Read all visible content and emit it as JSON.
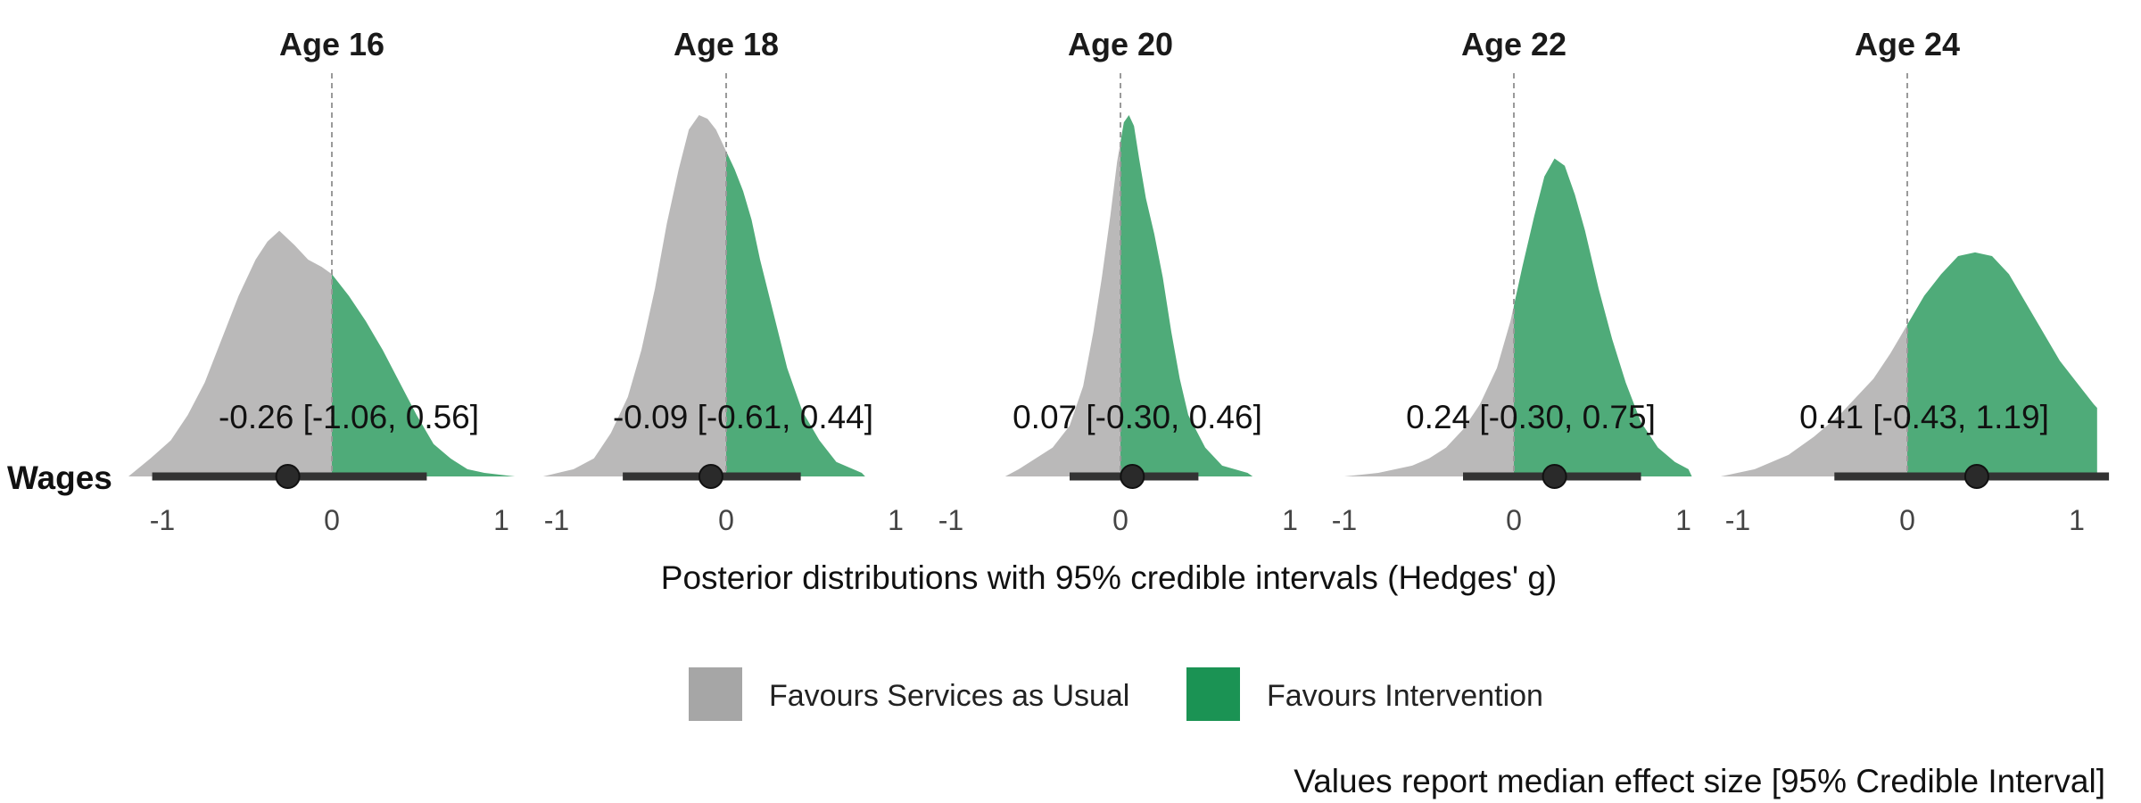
{
  "chart_data": {
    "type": "density",
    "row_label": "Wages",
    "xlabel": "Posterior distributions with 95% credible intervals (Hedges' g)",
    "xlim": [
      -1,
      1
    ],
    "xticks": [
      "-1",
      "0",
      "1"
    ],
    "reference_line": 0,
    "panels": [
      {
        "title": "Age 16",
        "median": -0.26,
        "ci": [
          -1.06,
          0.56
        ],
        "label": "-0.26 [-1.06, 0.56]",
        "density_x": [
          -1.2,
          -1.07,
          -0.95,
          -0.85,
          -0.75,
          -0.65,
          -0.55,
          -0.45,
          -0.38,
          -0.31,
          -0.22,
          -0.14,
          -0.06,
          0.0,
          0.1,
          0.2,
          0.3,
          0.4,
          0.5,
          0.6,
          0.7,
          0.8,
          0.9,
          1.08
        ],
        "density_y": [
          0.0,
          0.05,
          0.1,
          0.17,
          0.26,
          0.38,
          0.5,
          0.6,
          0.65,
          0.68,
          0.64,
          0.6,
          0.58,
          0.56,
          0.5,
          0.43,
          0.35,
          0.26,
          0.17,
          0.09,
          0.05,
          0.02,
          0.01,
          0.0
        ]
      },
      {
        "title": "Age 18",
        "median": -0.09,
        "ci": [
          -0.61,
          0.44
        ],
        "label": "-0.09 [-0.61, 0.44]",
        "density_x": [
          -1.08,
          -0.9,
          -0.78,
          -0.68,
          -0.58,
          -0.5,
          -0.42,
          -0.35,
          -0.28,
          -0.22,
          -0.16,
          -0.11,
          -0.06,
          0.0,
          0.05,
          0.1,
          0.15,
          0.2,
          0.28,
          0.36,
          0.45,
          0.55,
          0.65,
          0.8,
          0.82
        ],
        "density_y": [
          0.0,
          0.02,
          0.05,
          0.12,
          0.22,
          0.35,
          0.52,
          0.7,
          0.85,
          0.96,
          1.0,
          0.99,
          0.96,
          0.9,
          0.85,
          0.79,
          0.71,
          0.6,
          0.45,
          0.3,
          0.18,
          0.1,
          0.04,
          0.01,
          0.0
        ]
      },
      {
        "title": "Age 20",
        "median": 0.07,
        "ci": [
          -0.3,
          0.46
        ],
        "label": "0.07 [-0.30, 0.46]",
        "density_x": [
          -0.68,
          -0.6,
          -0.5,
          -0.4,
          -0.3,
          -0.22,
          -0.16,
          -0.11,
          -0.06,
          -0.02,
          0.02,
          0.05,
          0.08,
          0.11,
          0.15,
          0.2,
          0.25,
          0.3,
          0.35,
          0.4,
          0.5,
          0.6,
          0.75,
          0.78
        ],
        "density_y": [
          0.0,
          0.02,
          0.05,
          0.08,
          0.14,
          0.25,
          0.4,
          0.55,
          0.72,
          0.87,
          0.98,
          1.0,
          0.97,
          0.88,
          0.77,
          0.67,
          0.55,
          0.4,
          0.27,
          0.17,
          0.08,
          0.03,
          0.01,
          0.0
        ]
      },
      {
        "title": "Age 22",
        "median": 0.24,
        "ci": [
          -0.3,
          0.75
        ],
        "label": "0.24 [-0.30, 0.75]",
        "density_x": [
          -1.0,
          -0.8,
          -0.6,
          -0.5,
          -0.4,
          -0.3,
          -0.2,
          -0.1,
          -0.02,
          0.05,
          0.12,
          0.18,
          0.24,
          0.3,
          0.36,
          0.42,
          0.5,
          0.58,
          0.66,
          0.75,
          0.85,
          0.95,
          1.03,
          1.05
        ],
        "density_y": [
          0.0,
          0.01,
          0.03,
          0.05,
          0.08,
          0.13,
          0.2,
          0.3,
          0.43,
          0.58,
          0.72,
          0.83,
          0.88,
          0.86,
          0.78,
          0.68,
          0.52,
          0.38,
          0.26,
          0.15,
          0.08,
          0.04,
          0.02,
          0.0
        ]
      },
      {
        "title": "Age 24",
        "median": 0.41,
        "ci": [
          -0.43,
          1.19
        ],
        "label": "0.41 [-0.43, 1.19]",
        "density_x": [
          -1.1,
          -0.9,
          -0.7,
          -0.55,
          -0.4,
          -0.3,
          -0.2,
          -0.1,
          0.0,
          0.1,
          0.2,
          0.3,
          0.4,
          0.5,
          0.6,
          0.7,
          0.8,
          0.9,
          1.0,
          1.1,
          1.12,
          1.12
        ],
        "density_y": [
          0.0,
          0.02,
          0.06,
          0.11,
          0.17,
          0.22,
          0.27,
          0.34,
          0.42,
          0.5,
          0.56,
          0.61,
          0.62,
          0.61,
          0.56,
          0.48,
          0.4,
          0.32,
          0.26,
          0.2,
          0.19,
          0.0
        ]
      }
    ],
    "legend": [
      {
        "label": "Favours Services as Usual",
        "color": "#a6a6a6"
      },
      {
        "label": "Favours Intervention",
        "color": "#1b9354"
      }
    ],
    "caption": "Values report median effect size [95% Credible Interval]",
    "colors": {
      "below_zero": "#bab9b9",
      "above_zero": "#4fab79",
      "interval": "#333333",
      "point": "#2a2a2a",
      "reference_line": "#9a9a9a"
    }
  }
}
